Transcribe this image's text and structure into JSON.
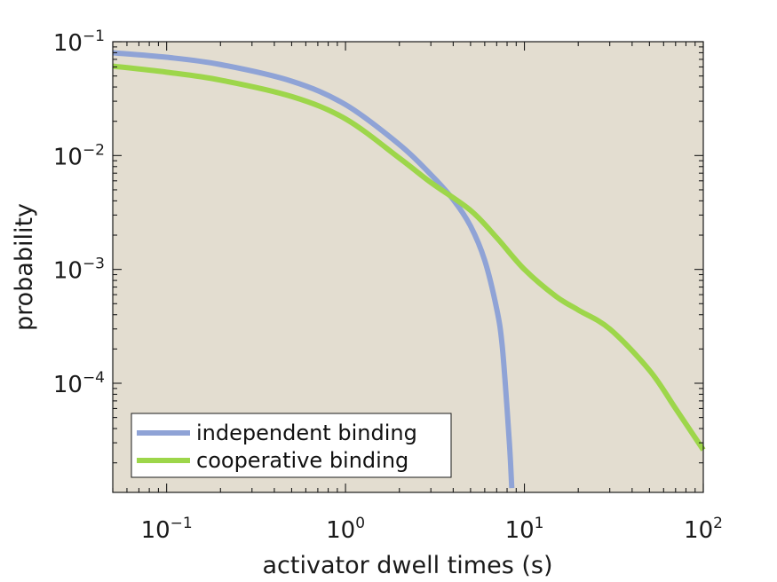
{
  "chart_data": {
    "type": "line",
    "xlabel": "activator dwell times (s)",
    "ylabel": "probability",
    "xscale": "log",
    "yscale": "log",
    "xlim": [
      0.05,
      100
    ],
    "ylim": [
      1.1e-05,
      0.1
    ],
    "xticks": [
      {
        "base": "10",
        "exp": "−1",
        "value": 0.1
      },
      {
        "base": "10",
        "exp": "0",
        "value": 1
      },
      {
        "base": "10",
        "exp": "1",
        "value": 10
      },
      {
        "base": "10",
        "exp": "2",
        "value": 100
      }
    ],
    "yticks": [
      {
        "base": "10",
        "exp": "−1",
        "value": 0.1
      },
      {
        "base": "10",
        "exp": "−2",
        "value": 0.01
      },
      {
        "base": "10",
        "exp": "−3",
        "value": 0.001
      },
      {
        "base": "10",
        "exp": "−4",
        "value": 0.0001
      }
    ],
    "grid": false,
    "legend_position": "bottom-left",
    "background_color": "#e3ddd0",
    "series": [
      {
        "name": "independent binding",
        "color": "#8fa3d6",
        "x": [
          0.05,
          0.1,
          0.2,
          0.5,
          1.0,
          2.0,
          3.0,
          4.0,
          5.0,
          6.0,
          7.0,
          7.5,
          8.0,
          8.3,
          8.5
        ],
        "y": [
          0.08,
          0.073,
          0.063,
          0.045,
          0.028,
          0.0125,
          0.0068,
          0.0041,
          0.0024,
          0.0012,
          0.00045,
          0.00022,
          6e-05,
          2.5e-05,
          1.2e-05
        ]
      },
      {
        "name": "cooperative binding",
        "color": "#9dd64a",
        "x": [
          0.05,
          0.1,
          0.2,
          0.5,
          1.0,
          2.0,
          3.0,
          5.0,
          7.0,
          10.0,
          15.0,
          20.0,
          30.0,
          50.0,
          70.0,
          100.0
        ],
        "y": [
          0.061,
          0.054,
          0.046,
          0.033,
          0.021,
          0.0095,
          0.0058,
          0.0033,
          0.0019,
          0.001,
          0.00058,
          0.00044,
          0.0003,
          0.00013,
          6e-05,
          2.6e-05
        ]
      }
    ]
  }
}
